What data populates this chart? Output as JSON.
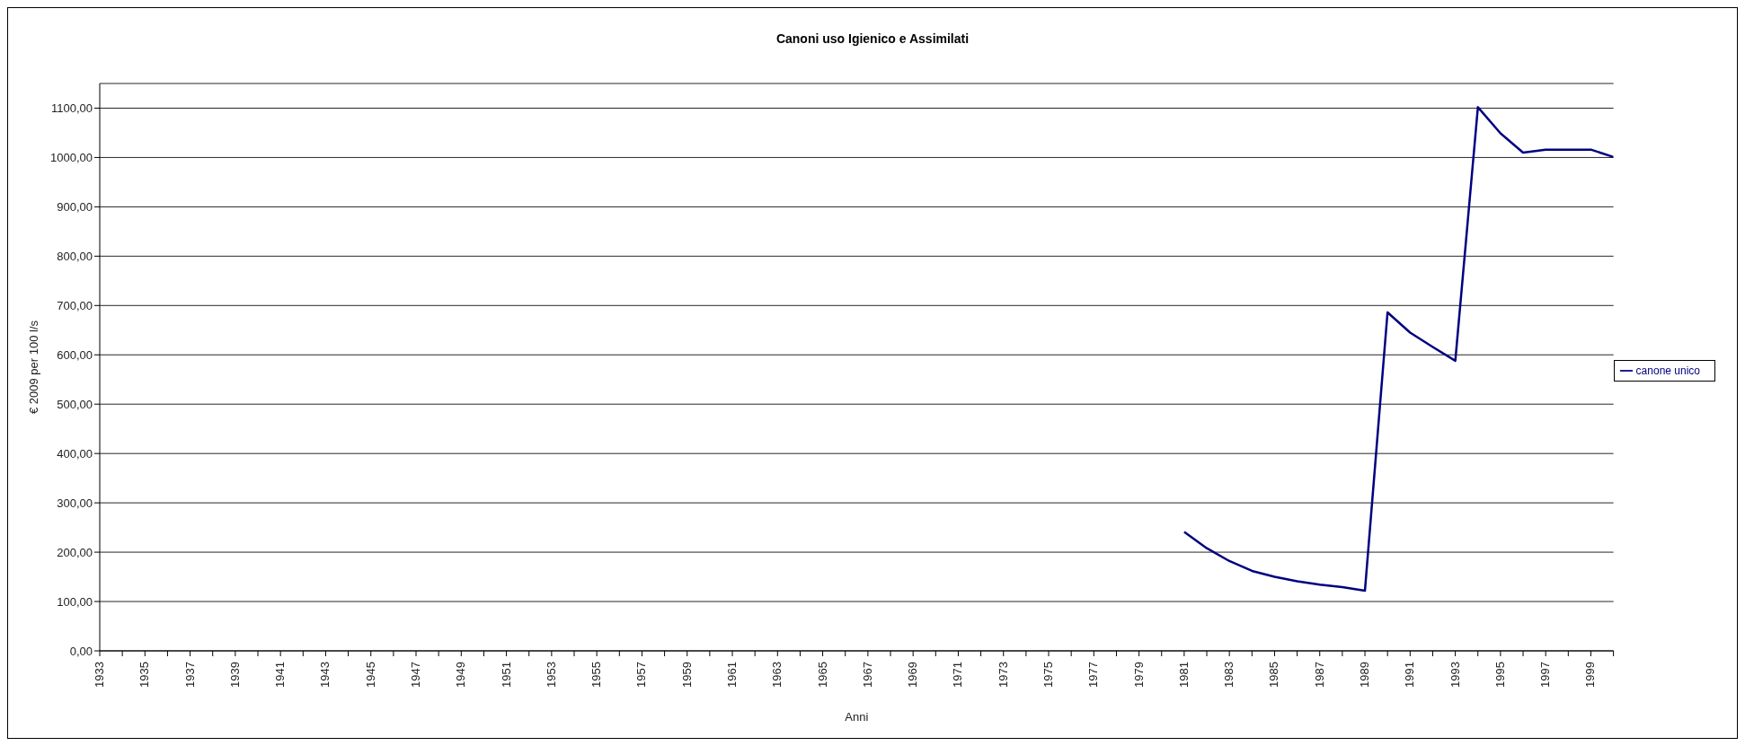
{
  "chart_data": {
    "type": "line",
    "title": "Canoni uso Igienico e Assimilati",
    "xlabel": "Anni",
    "ylabel": "€ 2009 per 100 l/s",
    "x": [
      1981,
      1982,
      1983,
      1984,
      1985,
      1986,
      1987,
      1988,
      1989,
      1990,
      1991,
      1992,
      1993,
      1994,
      1995,
      1996,
      1997,
      1998,
      1999,
      2000
    ],
    "series": [
      {
        "name": "canone unico",
        "color": "#000080",
        "values": [
          241,
          208,
          182,
          162,
          150,
          141,
          134,
          129,
          122,
          686,
          645,
          616,
          588,
          1102,
          1049,
          1010,
          1016,
          1016,
          1016,
          1001
        ]
      }
    ],
    "xlim": [
      1933,
      2000
    ],
    "xticks": [
      1933,
      {
        "value": 1934,
        "label": null
      },
      1935,
      {
        "value": 1936,
        "label": null
      },
      1937,
      {
        "value": 1938,
        "label": null
      },
      1939,
      {
        "value": 1940,
        "label": null
      },
      1941,
      {
        "value": 1942,
        "label": null
      },
      1943,
      {
        "value": 1944,
        "label": null
      },
      1945,
      {
        "value": 1946,
        "label": null
      },
      1947,
      {
        "value": 1948,
        "label": null
      },
      1949,
      {
        "value": 1950,
        "label": null
      },
      1951,
      {
        "value": 1952,
        "label": null
      },
      1953,
      {
        "value": 1954,
        "label": null
      },
      1955,
      {
        "value": 1956,
        "label": null
      },
      1957,
      {
        "value": 1958,
        "label": null
      },
      1959,
      {
        "value": 1960,
        "label": null
      },
      1961,
      {
        "value": 1962,
        "label": null
      },
      1963,
      {
        "value": 1964,
        "label": null
      },
      1965,
      {
        "value": 1966,
        "label": null
      },
      1967,
      {
        "value": 1968,
        "label": null
      },
      1969,
      {
        "value": 1970,
        "label": null
      },
      1971,
      {
        "value": 1972,
        "label": null
      },
      1973,
      {
        "value": 1974,
        "label": null
      },
      1975,
      {
        "value": 1976,
        "label": null
      },
      1977,
      {
        "value": 1978,
        "label": null
      },
      1979,
      {
        "value": 1980,
        "label": null
      },
      1981,
      {
        "value": 1982,
        "label": null
      },
      1983,
      {
        "value": 1984,
        "label": null
      },
      1985,
      {
        "value": 1986,
        "label": null
      },
      1987,
      {
        "value": 1988,
        "label": null
      },
      1989,
      {
        "value": 1990,
        "label": null
      },
      1991,
      {
        "value": 1992,
        "label": null
      },
      1993,
      {
        "value": 1994,
        "label": null
      },
      1995,
      {
        "value": 1996,
        "label": null
      },
      1997,
      {
        "value": 1998,
        "label": null
      },
      1999,
      {
        "value": 2000,
        "label": null
      }
    ],
    "ylim": [
      0,
      1150
    ],
    "yticks": [
      {
        "value": 0,
        "label": "0,00"
      },
      {
        "value": 100,
        "label": "100,00"
      },
      {
        "value": 200,
        "label": "200,00"
      },
      {
        "value": 300,
        "label": "300,00"
      },
      {
        "value": 400,
        "label": "400,00"
      },
      {
        "value": 500,
        "label": "500,00"
      },
      {
        "value": 600,
        "label": "600,00"
      },
      {
        "value": 700,
        "label": "700,00"
      },
      {
        "value": 800,
        "label": "800,00"
      },
      {
        "value": 900,
        "label": "900,00"
      },
      {
        "value": 1000,
        "label": "1000,00"
      },
      {
        "value": 1100,
        "label": "1100,00"
      }
    ],
    "grid": "y",
    "legend": "right",
    "marker": "none",
    "line_style": "solid"
  }
}
